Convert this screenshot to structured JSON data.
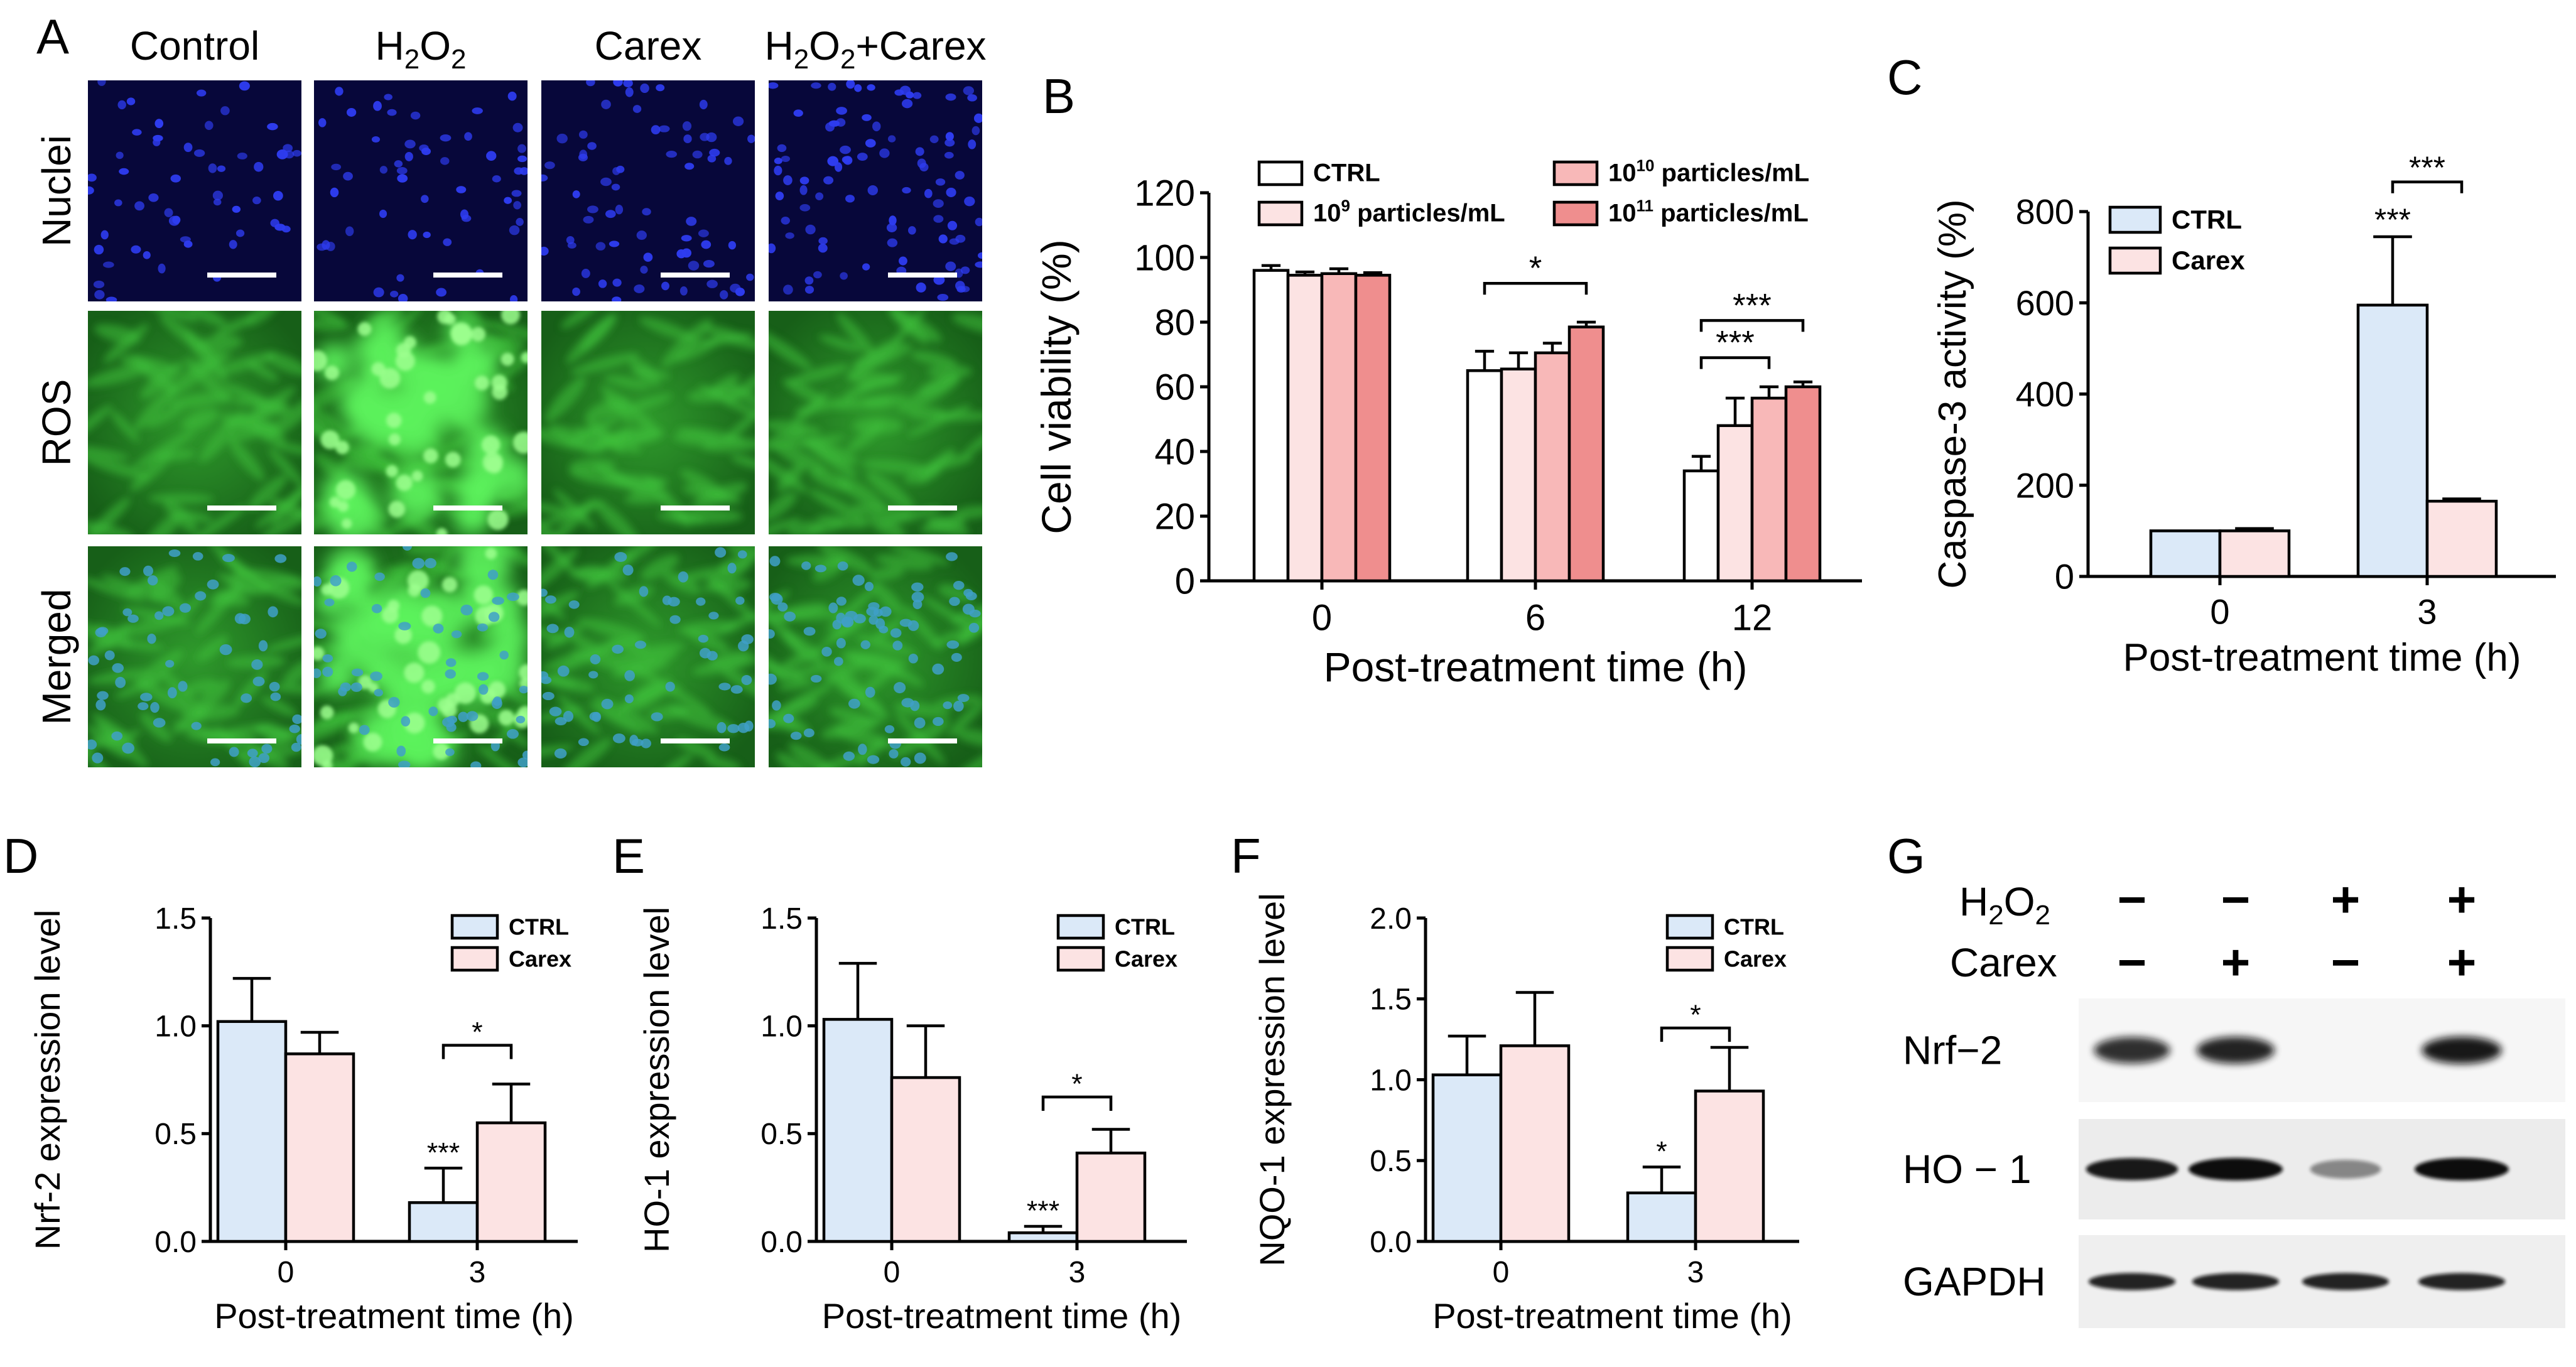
{
  "figure": {
    "panel_labels": [
      "A",
      "B",
      "C",
      "D",
      "E",
      "F",
      "G"
    ],
    "panelA": {
      "columns": [
        {
          "text": "Control"
        },
        {
          "text": "H",
          "sub1": "2",
          "mid": "O",
          "sub2": "2"
        },
        {
          "text": "Carex"
        },
        {
          "text": "H",
          "sub1": "2",
          "mid": "O",
          "sub2": "2",
          "tail": "+Carex"
        }
      ],
      "rows": [
        "Nuclei",
        "ROS",
        "Merged"
      ],
      "colors": {
        "nuclei_bg": "#07073a",
        "nuclei_dot": "#2e3cf0",
        "ros_bg": "#1f7a20",
        "ros_bright": "#5cf25c",
        "scale_bar": "#ffffff"
      }
    },
    "panelG": {
      "row_labels": [
        {
          "text": "H",
          "sub": "2",
          "tail": "O",
          "sub2": "2"
        },
        {
          "text": "Carex"
        }
      ],
      "h2o2_signs": [
        "−",
        "−",
        "+",
        "+"
      ],
      "carex_signs": [
        "−",
        "+",
        "−",
        "+"
      ],
      "bands": [
        "Nrf−2",
        "HO − 1",
        "GAPDH"
      ],
      "band_intensity": {
        "Nrf-2": [
          0.85,
          0.9,
          0.0,
          0.95
        ],
        "HO-1": [
          0.95,
          1.0,
          0.45,
          1.0
        ],
        "GAPDH": [
          0.9,
          0.9,
          0.9,
          0.9
        ]
      }
    }
  },
  "chart_data": [
    {
      "panel": "B",
      "type": "bar",
      "xlabel": "Post-treatment time (h)",
      "ylabel": "Cell viability (%)",
      "ylim": [
        0,
        120
      ],
      "yticks": [
        0,
        20,
        40,
        60,
        80,
        100,
        120
      ],
      "categories": [
        "0",
        "6",
        "12"
      ],
      "legend_position": "top",
      "series": [
        {
          "name": "CTRL",
          "color": "#ffffff",
          "values": [
            96,
            65,
            34
          ],
          "errors": [
            1.5,
            6,
            4.5
          ]
        },
        {
          "name": "10^9 particles/mL",
          "name_base": "10",
          "name_exp": "9",
          "name_tail": " particles/mL",
          "color": "#fce3e3",
          "values": [
            94.5,
            65.5,
            48
          ],
          "errors": [
            1,
            5,
            8.5
          ]
        },
        {
          "name": "10^10 particles/mL",
          "name_base": "10",
          "name_exp": "10",
          "name_tail": " particles/mL",
          "color": "#f8b8b8",
          "values": [
            95,
            70.5,
            56.5
          ],
          "errors": [
            1.5,
            3,
            3.5
          ]
        },
        {
          "name": "10^11 particles/mL",
          "name_base": "10",
          "name_exp": "11",
          "name_tail": " particles/mL",
          "color": "#ef8e8e",
          "values": [
            94.5,
            78.5,
            60
          ],
          "errors": [
            0.8,
            1.5,
            1.5
          ]
        }
      ],
      "significance": [
        {
          "group": 1,
          "from": 0,
          "to": 3,
          "label": "*"
        },
        {
          "group": 2,
          "from": 0,
          "to": 2,
          "label": "***"
        },
        {
          "group": 2,
          "from": 0,
          "to": 3,
          "label": "***"
        }
      ]
    },
    {
      "panel": "C",
      "type": "bar",
      "xlabel": "Post-treatment time (h)",
      "ylabel": "Caspase-3 activity (%)",
      "ylim": [
        0,
        800
      ],
      "yticks": [
        0,
        200,
        400,
        600,
        800
      ],
      "categories": [
        "0",
        "3"
      ],
      "legend_position": "top-left",
      "series": [
        {
          "name": "CTRL",
          "color": "#dbe9f8",
          "values": [
            100,
            595
          ],
          "errors": [
            0,
            150
          ]
        },
        {
          "name": "Carex",
          "color": "#fce3e3",
          "values": [
            100,
            165
          ],
          "errors": [
            5,
            5
          ]
        }
      ],
      "significance": [
        {
          "group": 1,
          "from": 0,
          "to": 1,
          "label": "***"
        }
      ],
      "star_labels": [
        {
          "group": 1,
          "series": 0,
          "label": "***"
        }
      ]
    },
    {
      "panel": "D",
      "type": "bar",
      "xlabel": "Post-treatment time (h)",
      "ylabel": "Nrf-2 expression level",
      "ylim": [
        0,
        1.5
      ],
      "yticks": [
        "0.0",
        "0.5",
        "1.0",
        "1.5"
      ],
      "categories": [
        "0",
        "3"
      ],
      "legend_position": "top-right",
      "series": [
        {
          "name": "CTRL",
          "color": "#dbe9f8",
          "values": [
            1.02,
            0.18
          ],
          "errors": [
            0.2,
            0.16
          ]
        },
        {
          "name": "Carex",
          "color": "#fce3e3",
          "values": [
            0.87,
            0.55
          ],
          "errors": [
            0.1,
            0.18
          ]
        }
      ],
      "significance": [
        {
          "group": 1,
          "from": 0,
          "to": 1,
          "label": "*"
        }
      ],
      "star_labels": [
        {
          "group": 1,
          "series": 0,
          "label": "***"
        }
      ]
    },
    {
      "panel": "E",
      "type": "bar",
      "xlabel": "Post-treatment time (h)",
      "ylabel": "HO-1 expression level",
      "ylim": [
        0,
        1.5
      ],
      "yticks": [
        "0.0",
        "0.5",
        "1.0",
        "1.5"
      ],
      "categories": [
        "0",
        "3"
      ],
      "legend_position": "top-right",
      "series": [
        {
          "name": "CTRL",
          "color": "#dbe9f8",
          "values": [
            1.03,
            0.04
          ],
          "errors": [
            0.26,
            0.03
          ]
        },
        {
          "name": "Carex",
          "color": "#fce3e3",
          "values": [
            0.76,
            0.41
          ],
          "errors": [
            0.24,
            0.11
          ]
        }
      ],
      "significance": [
        {
          "group": 1,
          "from": 0,
          "to": 1,
          "label": "*"
        }
      ],
      "star_labels": [
        {
          "group": 1,
          "series": 0,
          "label": "***"
        }
      ]
    },
    {
      "panel": "F",
      "type": "bar",
      "xlabel": "Post-treatment time (h)",
      "ylabel": "NQO-1 expression level",
      "ylim": [
        0,
        2.0
      ],
      "yticks": [
        "0.0",
        "0.5",
        "1.0",
        "1.5",
        "2.0"
      ],
      "categories": [
        "0",
        "3"
      ],
      "legend_position": "top-right",
      "series": [
        {
          "name": "CTRL",
          "color": "#dbe9f8",
          "values": [
            1.03,
            0.3
          ],
          "errors": [
            0.24,
            0.16
          ]
        },
        {
          "name": "Carex",
          "color": "#fce3e3",
          "values": [
            1.21,
            0.93
          ],
          "errors": [
            0.33,
            0.27
          ]
        }
      ],
      "significance": [
        {
          "group": 1,
          "from": 0,
          "to": 1,
          "label": "*"
        }
      ],
      "star_labels": [
        {
          "group": 1,
          "series": 0,
          "label": "*"
        }
      ]
    }
  ]
}
